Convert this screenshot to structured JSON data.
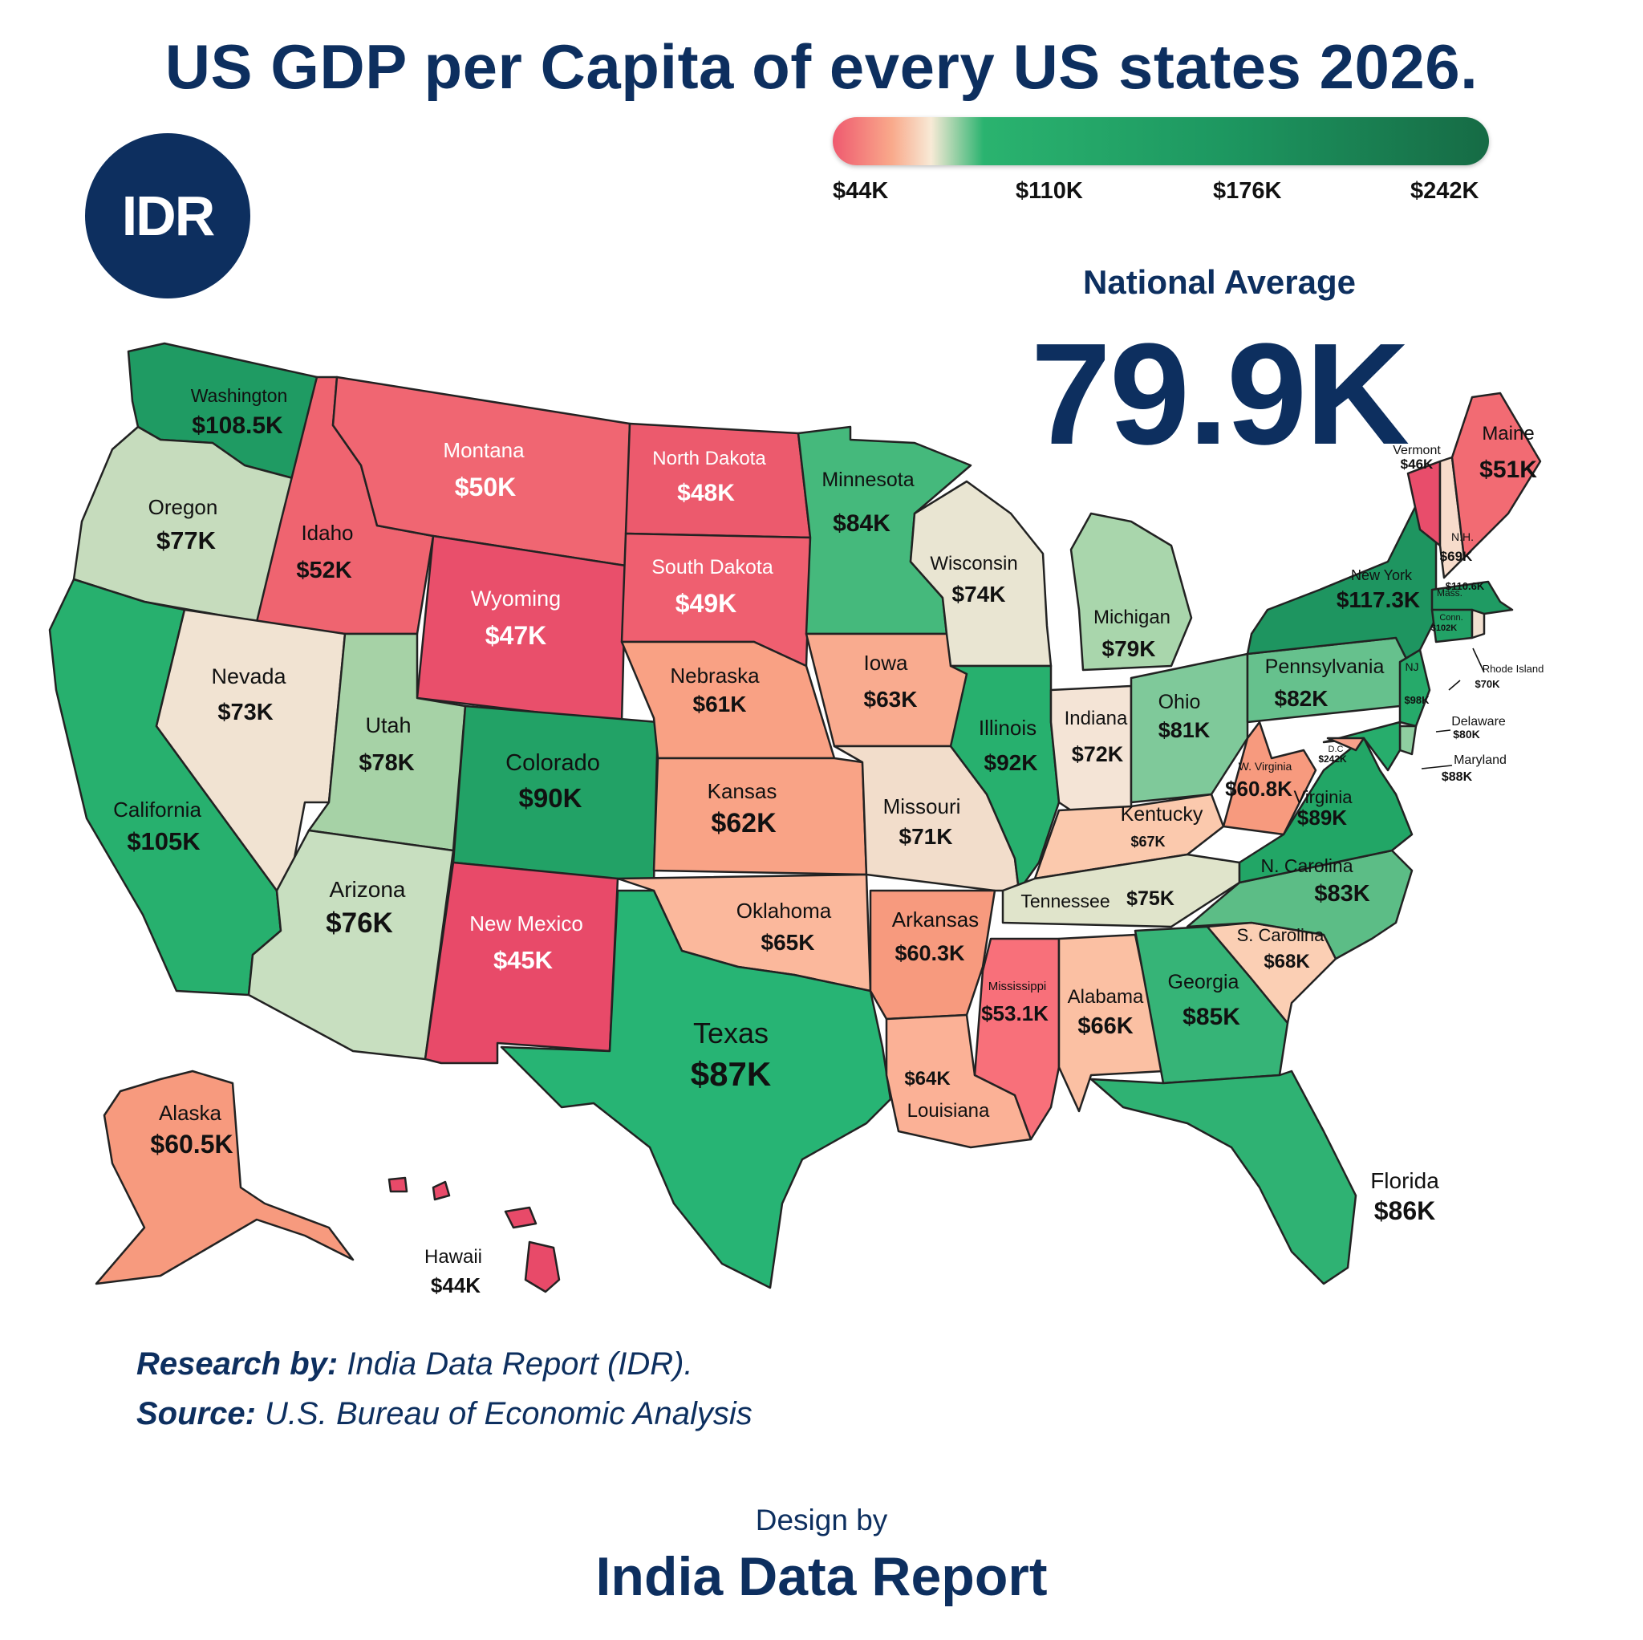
{
  "title": "US GDP per Capita of every US states 2026.",
  "logo_text": "IDR",
  "legend": {
    "ticks": [
      "$44K",
      "$110K",
      "$176K",
      "$242K"
    ],
    "min_value": 44,
    "max_value": 242,
    "colors": [
      "#ef5a6f",
      "#f9a98b",
      "#f8ead6",
      "#2ab36f",
      "#1d9760",
      "#166b45"
    ]
  },
  "national_average": {
    "label": "National Average",
    "value": "79.9K"
  },
  "states": [
    {
      "name": "Washington",
      "value": "$108.5K",
      "color": "#1f9b63"
    },
    {
      "name": "Oregon",
      "value": "$77K",
      "color": "#c6dcbd"
    },
    {
      "name": "California",
      "value": "$105K",
      "color": "#27b06e"
    },
    {
      "name": "Idaho",
      "value": "$52K",
      "color": "#ef6470"
    },
    {
      "name": "Nevada",
      "value": "$73K",
      "color": "#f1e3d2"
    },
    {
      "name": "Montana",
      "value": "$50K",
      "color": "#f06672"
    },
    {
      "name": "Wyoming",
      "value": "$47K",
      "color": "#e94f6b"
    },
    {
      "name": "Utah",
      "value": "$78K",
      "color": "#a6d2a6"
    },
    {
      "name": "Arizona",
      "value": "$76K",
      "color": "#c8dfc0"
    },
    {
      "name": "Colorado",
      "value": "$90K",
      "color": "#22a266"
    },
    {
      "name": "New Mexico",
      "value": "$45K",
      "color": "#e84a69"
    },
    {
      "name": "North Dakota",
      "value": "$48K",
      "color": "#ec5a6d"
    },
    {
      "name": "South Dakota",
      "value": "$49K",
      "color": "#ef5f70"
    },
    {
      "name": "Nebraska",
      "value": "$61K",
      "color": "#f9a184"
    },
    {
      "name": "Kansas",
      "value": "$62K",
      "color": "#f9a386"
    },
    {
      "name": "Oklahoma",
      "value": "$65K",
      "color": "#fbb89c"
    },
    {
      "name": "Texas",
      "value": "$87K",
      "color": "#27b474"
    },
    {
      "name": "Minnesota",
      "value": "$84K",
      "color": "#45b97c"
    },
    {
      "name": "Iowa",
      "value": "$63K",
      "color": "#f9ab8f"
    },
    {
      "name": "Missouri",
      "value": "$71K",
      "color": "#f2ddcb"
    },
    {
      "name": "Arkansas",
      "value": "$60.3K",
      "color": "#f79a7e"
    },
    {
      "name": "Louisiana",
      "value": "$64K",
      "color": "#fbb196"
    },
    {
      "name": "Wisconsin",
      "value": "$74K",
      "color": "#e9e5d2"
    },
    {
      "name": "Illinois",
      "value": "$92K",
      "color": "#27b06e"
    },
    {
      "name": "Michigan",
      "value": "$79K",
      "color": "#a9d6ac"
    },
    {
      "name": "Indiana",
      "value": "$72K",
      "color": "#f4e4d6"
    },
    {
      "name": "Ohio",
      "value": "$81K",
      "color": "#7fc99a"
    },
    {
      "name": "Kentucky",
      "value": "$67K",
      "color": "#fbc9ad"
    },
    {
      "name": "Tennessee",
      "value": "$75K",
      "color": "#e0e4cb"
    },
    {
      "name": "Mississippi",
      "value": "$53.1K",
      "color": "#f8707a"
    },
    {
      "name": "Alabama",
      "value": "$66K",
      "color": "#fbc0a3"
    },
    {
      "name": "Georgia",
      "value": "$85K",
      "color": "#36b477"
    },
    {
      "name": "Florida",
      "value": "$86K",
      "color": "#2fb273"
    },
    {
      "name": "S. Carolina",
      "value": "$68K",
      "color": "#fbcfb4"
    },
    {
      "name": "N. Carolina",
      "value": "$83K",
      "color": "#5cbd86"
    },
    {
      "name": "Virginia",
      "value": "$89K",
      "color": "#22a666"
    },
    {
      "name": "W. Virginia",
      "value": "$60.8K",
      "color": "#f79a7e"
    },
    {
      "name": "Pennsylvania",
      "value": "$82K",
      "color": "#66c18d"
    },
    {
      "name": "New York",
      "value": "$117.3K",
      "color": "#1e9560"
    },
    {
      "name": "Vermont",
      "value": "$46K",
      "color": "#e84d6b"
    },
    {
      "name": "N.H.",
      "value": "$69K",
      "color": "#f7dccb"
    },
    {
      "name": "Maine",
      "value": "$51K",
      "color": "#f26b73"
    },
    {
      "name": "Mass.",
      "value": "$110.6K",
      "color": "#1f9b63"
    },
    {
      "name": "Conn.",
      "value": "$102K",
      "color": "#22a266"
    },
    {
      "name": "Rhode Island",
      "value": "$70K",
      "color": "#f2e0d0"
    },
    {
      "name": "NJ",
      "value": "$98K",
      "color": "#26aa6a"
    },
    {
      "name": "Delaware",
      "value": "$80K",
      "color": "#8fcea0"
    },
    {
      "name": "Maryland",
      "value": "$88K",
      "color": "#27ad6c"
    },
    {
      "name": "D.C",
      "value": "$242K",
      "color": "#f5a08a"
    },
    {
      "name": "Alaska",
      "value": "$60.5K",
      "color": "#f79a7e"
    },
    {
      "name": "Hawaii",
      "value": "$44K",
      "color": "#e84a69"
    }
  ],
  "footer": {
    "research_label": "Research by:",
    "research_text": " India Data Report (IDR).",
    "source_label": "Source:",
    "source_text": " U.S. Bureau of Economic Analysis",
    "design_by": "Design by",
    "brand": "India Data Report"
  }
}
